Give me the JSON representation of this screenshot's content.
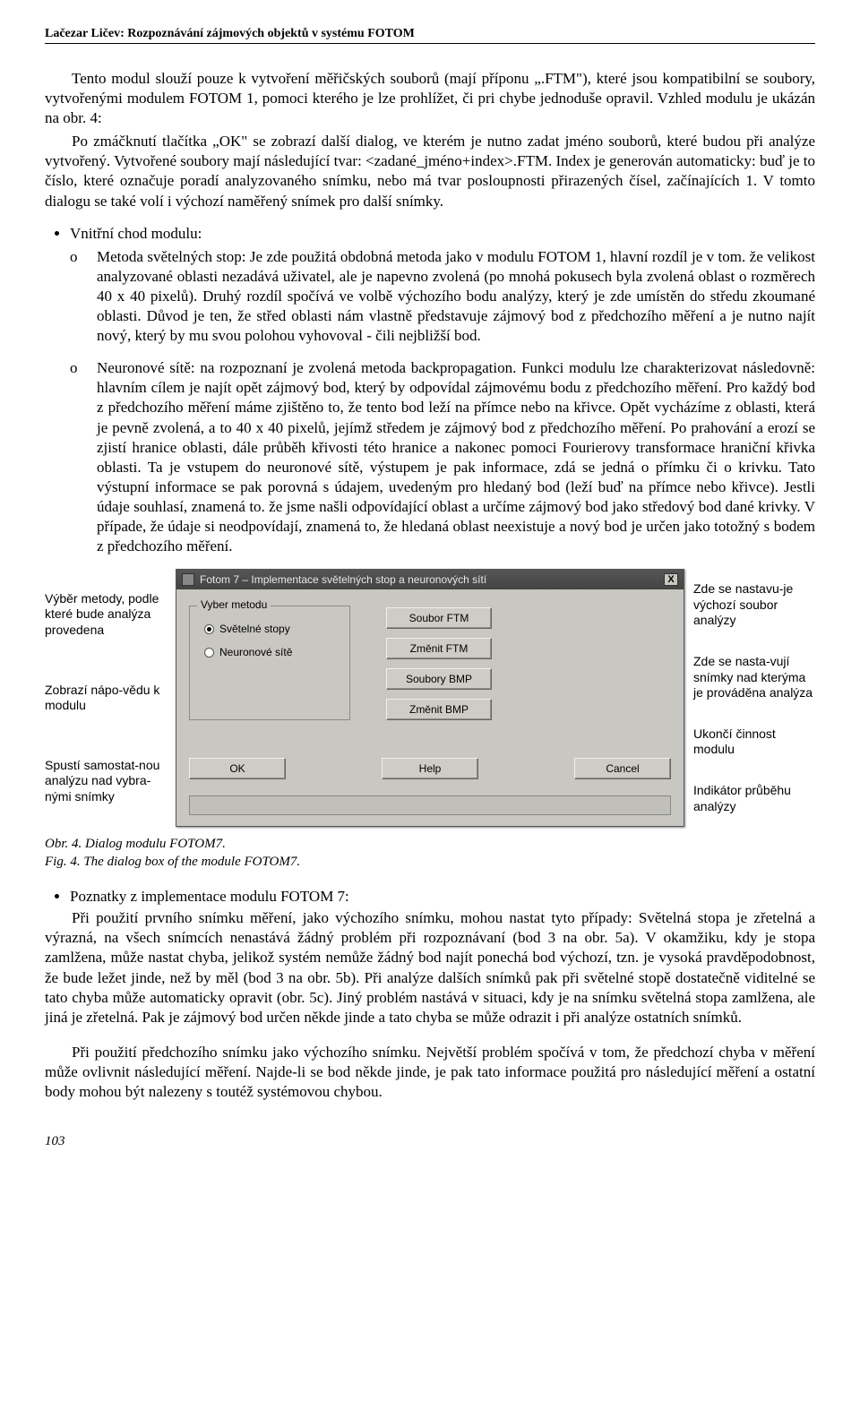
{
  "header": "Lačezar Ličev: Rozpoznávání zájmových objektů v systému FOTOM",
  "para1": "Tento modul slouží pouze k vytvoření měřičských souborů (mají příponu „.FTM\"), které jsou kompatibilní se soubory, vytvořenými modulem FOTOM 1, pomoci kterého je lze prohlížet, či pri chybe jednoduše opravil. Vzhled modulu je ukázán na obr. 4:",
  "para2": "Po zmáčknutí tlačítka „OK\" se zobrazí další dialog, ve kterém je nutno zadat jméno souborů, které budou při analýze vytvořený. Vytvořené soubory mají následující tvar: <zadané_jméno+index>.FTM. Index je generován automaticky: buď je to číslo, které označuje poradí analyzovaného snímku, nebo má tvar posloupnosti přirazených čísel, začínajících 1. V tomto dialogu se také volí i výchozí naměřený snímek pro další snímky.",
  "inner_head": "Vnitřní chod modulu:",
  "sub1": "Metoda světelných stop: Je zde použitá obdobná metoda jako v modulu FOTOM 1, hlavní rozdíl je v tom. že velikost analyzované oblasti nezadává uživatel, ale je napevno zvolená (po mnohá pokusech byla zvolená oblast o rozměrech 40 x 40 pixelů). Druhý rozdíl spočívá ve volbě výchozího bodu analýzy, který je zde umístěn do středu zkoumané oblasti. Důvod je ten, že střed oblasti nám vlastně představuje zájmový bod z předchozího měření a je nutno najít nový, který by mu svou polohou vyhovoval - čili nejbližší bod.",
  "sub2": "Neuronové sítě: na rozpoznaní je zvolená metoda backpropagation. Funkci modulu lze charakterizovat následovně: hlavním cílem je najít opět zájmový bod, který by odpovídal zájmovému bodu z předchozího měření. Pro každý bod z předchozího měření máme zjištěno to, že tento bod leží na přímce nebo na křivce. Opět vycházíme z oblasti, která je pevně zvolená, a to 40 x 40 pixelů, jejímž středem je zájmový bod z předchozího měření. Po prahování a erozí se zjistí hranice oblasti, dále průběh křivosti této hranice a nakonec pomoci Fourierovy transformace hraniční křivka oblasti. Ta je vstupem do neuronové sítě, výstupem je pak informace, zdá se jedná o přímku či o krivku. Tato výstupní informace se pak porovná s údajem, uvedeným pro hledaný bod (leží buď na přímce nebo křivce). Jestli údaje souhlasí, znamená to. že jsme našli odpovídající oblast a určíme zájmový bod jako středový bod dané krivky. V případe, že údaje si neodpovídají, znamená to, že hledaná oblast neexistuje a nový bod je určen jako totožný s bodem z předchozího měření.",
  "dialog": {
    "title": "Fotom 7 – Implementace světelných stop a neuronových sítí",
    "group_label": "Vyber metodu",
    "radio1": "Světelné stopy",
    "radio2": "Neuronové sítě",
    "btn_ftm": "Soubor FTM",
    "btn_change_ftm": "Změnit FTM",
    "btn_bmp": "Soubory BMP",
    "btn_change_bmp": "Změnit BMP",
    "btn_ok": "OK",
    "btn_help": "Help",
    "btn_cancel": "Cancel",
    "close": "X"
  },
  "anno_left": {
    "a1": "Výběr metody, podle které bude analýza provedena",
    "a2": "Zobrazí nápo-vědu k modulu",
    "a3": "Spustí samostat-nou analýzu nad vybra-nými snímky"
  },
  "anno_right": {
    "a1": "Zde se nastavu-je výchozí soubor analýzy",
    "a2": "Zde se nasta-vují snímky nad kterýma je prováděna analýza",
    "a3": "Ukončí činnost modulu",
    "a4": "Indikátor průběhu analýzy"
  },
  "figcap1": "Obr. 4. Dialog modulu FOTOM7.",
  "figcap2": "Fig. 4. The dialog box of the module FOTOM7.",
  "poznatky_head": "Poznatky z implementace modulu FOTOM 7:",
  "para3": "Při použití prvního snímku měření, jako výchozího snímku, mohou nastat tyto případy: Světelná stopa je zřetelná a výrazná, na všech snímcích nenastává žádný problém při rozpoznávaní (bod 3 na obr. 5a). V okamžiku, kdy je stopa zamlžena, může nastat chyba, jelikož systém nemůže žádný bod najít ponechá bod výchozí, tzn. je vysoká pravděpodobnost, že bude ležet jinde, než by měl (bod 3 na obr. 5b). Při analýze dalších snímků pak při světelné stopě dostatečně viditelné se tato chyba může automaticky opravit (obr. 5c). Jiný problém nastává v situaci, kdy je na snímku světelná stopa zamlžena, ale jiná je zřetelná. Pak je zájmový bod určen někde jinde a tato chyba se může odrazit i při analýze ostatních snímků.",
  "para4": "Při použití předchozího snímku jako výchozího snímku. Největší problém spočívá v tom, že předchozí chyba v měření může ovlivnit následující měření. Najde-li se bod někde jinde, je pak tato informace použitá pro následující měření a ostatní body mohou být nalezeny s toutéž systémovou chybou.",
  "page_num": "103"
}
